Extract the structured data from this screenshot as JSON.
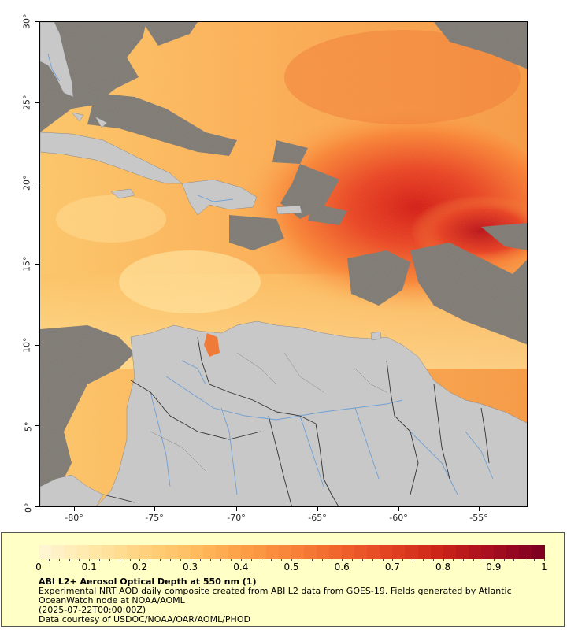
{
  "map": {
    "y_axis_ticks": [
      "30°",
      "25°",
      "20°",
      "15°",
      "10°",
      "5°",
      "0°"
    ],
    "x_axis_ticks": [
      "-80°",
      "-75°",
      "-70°",
      "-65°",
      "-60°",
      "-55°"
    ],
    "lat_range": [
      0,
      30
    ],
    "lon_range": [
      -82,
      -52
    ],
    "colors": {
      "land": "#c8c8c8",
      "no_data": "#7a7a7a",
      "rivers": "#6fa0d4",
      "borders": "#333333"
    }
  },
  "legend": {
    "colorbar_labels": [
      "0",
      "0.1",
      "0.2",
      "0.3",
      "0.4",
      "0.5",
      "0.6",
      "0.7",
      "0.8",
      "0.9",
      "1"
    ],
    "colorbar_colors": [
      "#fff5d0",
      "#ffe7a6",
      "#ffd27e",
      "#ffbd5f",
      "#fda047",
      "#f88339",
      "#f0632c",
      "#e24321",
      "#cc2419",
      "#a80e1e",
      "#800022"
    ],
    "title": "ABI L2+ Aerosol Optical Depth at 550 nm (1)",
    "line1": "Experimental NRT AOD daily composite created from ABI L2 data from GOES-19. Fields generated by Atlantic OceanWatch node at NOAA/AOML",
    "line2": "(2025-07-22T00:00:00Z)",
    "line3": "Data courtesy of USDOC/NOAA/OAR/AOML/PHOD"
  }
}
